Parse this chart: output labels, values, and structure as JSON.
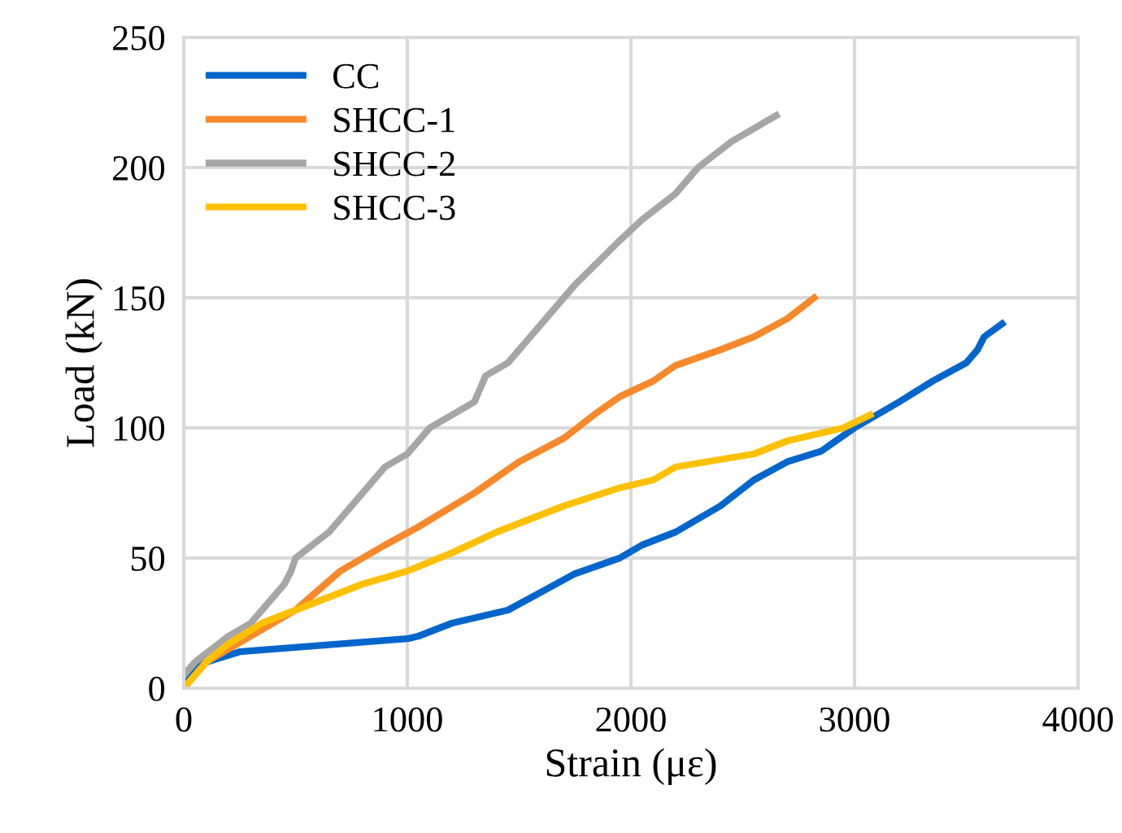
{
  "chart_data": {
    "type": "line",
    "xlabel": "Strain (με)",
    "ylabel": "Load (kN)",
    "xlim": [
      0,
      4000
    ],
    "ylim": [
      0,
      250
    ],
    "xticks": [
      0,
      1000,
      2000,
      3000,
      4000
    ],
    "yticks": [
      0,
      50,
      100,
      150,
      200,
      250
    ],
    "grid": true,
    "legend": "top left",
    "marker": "none",
    "line_style": "solid",
    "series": [
      {
        "name": "CC",
        "color": "#0066cc",
        "x": [
          0,
          50,
          100,
          250,
          1000,
          1050,
          1200,
          1450,
          1600,
          1750,
          1950,
          2050,
          2200,
          2300,
          2400,
          2550,
          2700,
          2850,
          3000,
          3100,
          3200,
          3350,
          3500,
          3550,
          3580,
          3660
        ],
        "values": [
          0,
          8,
          10,
          14,
          19,
          20,
          25,
          30,
          37,
          44,
          50,
          55,
          60,
          65,
          70,
          80,
          87,
          91,
          100,
          105,
          110,
          118,
          125,
          130,
          135,
          140
        ]
      },
      {
        "name": "SHCC-1",
        "color": "#f7892a",
        "x": [
          0,
          100,
          300,
          500,
          700,
          900,
          1050,
          1300,
          1500,
          1700,
          1850,
          1950,
          2100,
          2200,
          2400,
          2550,
          2700,
          2820
        ],
        "values": [
          0,
          10,
          20,
          30,
          45,
          55,
          62,
          75,
          87,
          96,
          106,
          112,
          118,
          124,
          130,
          135,
          142,
          150
        ]
      },
      {
        "name": "SHCC-2",
        "color": "#a6a6a6",
        "x": [
          0,
          50,
          200,
          300,
          350,
          450,
          480,
          500,
          650,
          800,
          900,
          1000,
          1100,
          1200,
          1300,
          1350,
          1450,
          1500,
          1550,
          1750,
          1950,
          2050,
          2200,
          2300,
          2450,
          2650
        ],
        "values": [
          5,
          10,
          20,
          25,
          30,
          40,
          45,
          50,
          60,
          75,
          85,
          90,
          100,
          105,
          110,
          120,
          125,
          130,
          135,
          155,
          172,
          180,
          190,
          200,
          210,
          220
        ]
      },
      {
        "name": "SHCC-3",
        "color": "#ffc000",
        "x": [
          0,
          100,
          200,
          350,
          500,
          800,
          1000,
          1200,
          1400,
          1550,
          1700,
          1950,
          2100,
          2200,
          2550,
          2700,
          2950,
          3070
        ],
        "values": [
          0,
          10,
          17,
          25,
          30,
          40,
          45,
          52,
          60,
          65,
          70,
          77,
          80,
          85,
          90,
          95,
          100,
          105
        ]
      }
    ]
  }
}
